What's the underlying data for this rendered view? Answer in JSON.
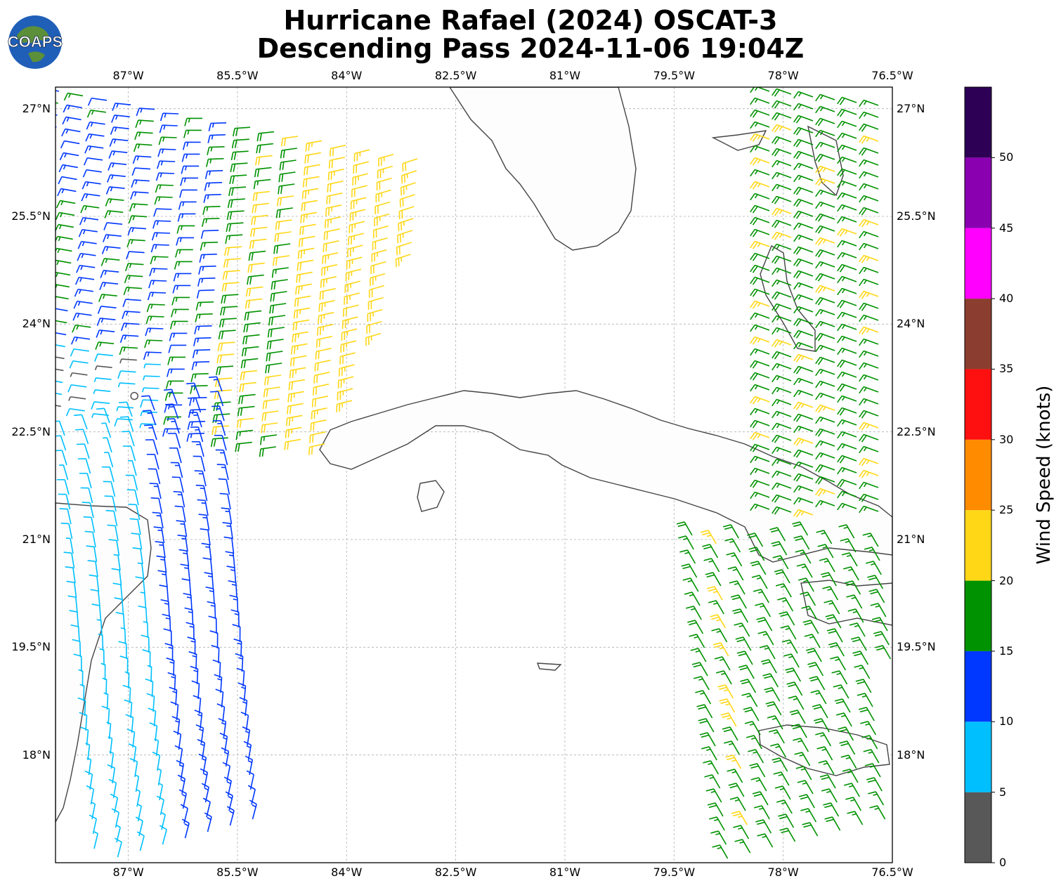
{
  "title": {
    "line1": "Hurricane Rafael (2024) OSCAT-3",
    "line2": "Descending Pass 2024-11-06 19:04Z"
  },
  "logo": {
    "text": "COAPS",
    "icon": "globe-logo-icon"
  },
  "map": {
    "lon_range": [
      -88.0,
      -76.5
    ],
    "lat_range": [
      16.5,
      27.3
    ],
    "grid": true,
    "lon_labels": [
      "87°W",
      "85.5°W",
      "84°W",
      "82.5°W",
      "81°W",
      "79.5°W",
      "78°W",
      "76.5°W"
    ],
    "lat_labels": [
      "27°N",
      "25.5°N",
      "24°N",
      "22.5°N",
      "21°N",
      "19.5°N",
      "18°N"
    ],
    "lon_values": [
      -87,
      -85.5,
      -84,
      -82.5,
      -81,
      -79.5,
      -78,
      -76.5
    ],
    "lat_values": [
      27,
      25.5,
      24,
      22.5,
      21,
      19.5,
      18
    ]
  },
  "colorbar": {
    "label": "Wind Speed (knots)",
    "ticks": [
      "0",
      "5",
      "10",
      "15",
      "20",
      "25",
      "30",
      "35",
      "40",
      "45",
      "50"
    ],
    "bins": [
      {
        "from": 0,
        "to": 5,
        "color": "#585858"
      },
      {
        "from": 5,
        "to": 10,
        "color": "#00bfff"
      },
      {
        "from": 10,
        "to": 15,
        "color": "#0038ff"
      },
      {
        "from": 15,
        "to": 20,
        "color": "#009200"
      },
      {
        "from": 20,
        "to": 25,
        "color": "#ffd717"
      },
      {
        "from": 25,
        "to": 30,
        "color": "#ff8c00"
      },
      {
        "from": 30,
        "to": 35,
        "color": "#ff1010"
      },
      {
        "from": 35,
        "to": 40,
        "color": "#8b3e2f"
      },
      {
        "from": 40,
        "to": 45,
        "color": "#ff00ff"
      },
      {
        "from": 45,
        "to": 50,
        "color": "#8a00b0"
      },
      {
        "from": 50,
        "to": 55,
        "color": "#2e0055"
      }
    ]
  }
}
